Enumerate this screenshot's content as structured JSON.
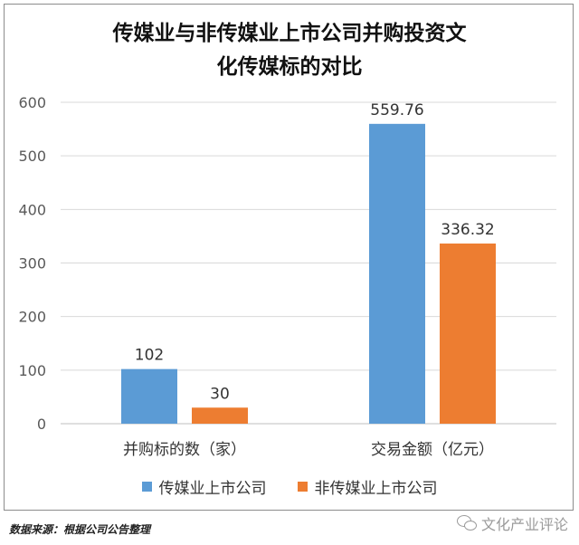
{
  "chart_data": {
    "type": "bar",
    "title_lines": [
      "传媒业与非传媒业上市公司并购投资文",
      "化传媒标的对比"
    ],
    "categories": [
      "并购标的数（家）",
      "交易金额（亿元）"
    ],
    "series": [
      {
        "name": "传媒业上市公司",
        "color": "#5b9bd5",
        "values": [
          102,
          559.76
        ]
      },
      {
        "name": "非传媒业上市公司",
        "color": "#ed7d31",
        "values": [
          30,
          336.32
        ]
      }
    ],
    "value_labels": [
      [
        "102",
        "559.76"
      ],
      [
        "30",
        "336.32"
      ]
    ],
    "ylim": [
      0,
      600
    ],
    "yticks": [
      0,
      100,
      200,
      300,
      400,
      500,
      600
    ],
    "grid": true,
    "legend_position": "bottom"
  },
  "source_text": "数据来源：根据公司公告整理",
  "watermark_text": "文化产业评论"
}
